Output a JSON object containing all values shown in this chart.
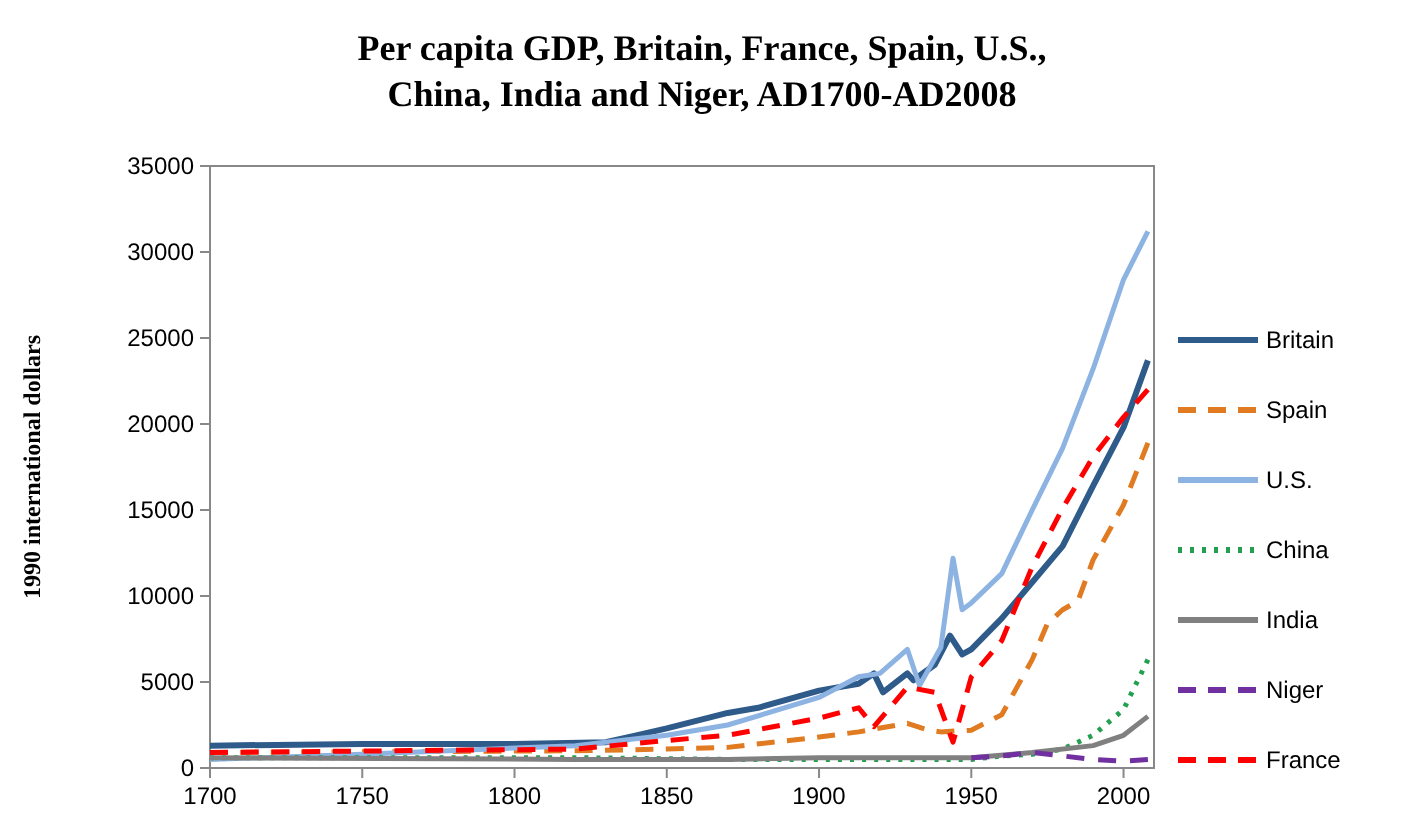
{
  "chart_data": {
    "type": "line",
    "title": "Per capita GDP, Britain, France, Spain, U.S., China, India and Niger, AD1700-AD2008",
    "ylabel": "1990 international dollars",
    "xlim": [
      1700,
      2010
    ],
    "xticks": [
      1700,
      1750,
      1800,
      1850,
      1900,
      1950,
      2000
    ],
    "ylim": [
      0,
      35000
    ],
    "yticks": [
      0,
      5000,
      10000,
      15000,
      20000,
      25000,
      30000,
      35000
    ],
    "grid": false,
    "legend": "right",
    "series": [
      {
        "name": "Britain",
        "color": "#2e5b8a",
        "line_style": "solid",
        "x": [
          1700,
          1750,
          1800,
          1830,
          1840,
          1850,
          1870,
          1880,
          1900,
          1913,
          1918,
          1921,
          1929,
          1931,
          1938,
          1943,
          1947,
          1950,
          1960,
          1970,
          1980,
          1990,
          2000,
          2008
        ],
        "values": [
          1300,
          1400,
          1400,
          1500,
          1900,
          2300,
          3200,
          3500,
          4500,
          4900,
          5500,
          4400,
          5500,
          5100,
          6000,
          7700,
          6600,
          6900,
          8700,
          10800,
          12900,
          16400,
          19800,
          23700
        ]
      },
      {
        "name": "Spain",
        "color": "#e07b22",
        "line_style": "dashed",
        "x": [
          1700,
          1820,
          1850,
          1870,
          1900,
          1913,
          1929,
          1936,
          1940,
          1950,
          1960,
          1970,
          1975,
          1980,
          1985,
          1990,
          2000,
          2008
        ],
        "values": [
          900,
          1000,
          1100,
          1200,
          1800,
          2100,
          2600,
          2200,
          2100,
          2200,
          3100,
          6300,
          8400,
          9200,
          9700,
          12100,
          15300,
          18900
        ]
      },
      {
        "name": "U.S.",
        "color": "#8db3e2",
        "line_style": "solid",
        "x": [
          1700,
          1750,
          1820,
          1850,
          1870,
          1900,
          1913,
          1920,
          1929,
          1933,
          1940,
          1944,
          1947,
          1950,
          1960,
          1970,
          1980,
          1990,
          2000,
          2008
        ],
        "values": [
          500,
          800,
          1300,
          1900,
          2500,
          4100,
          5300,
          5500,
          6900,
          4800,
          7000,
          12200,
          9200,
          9600,
          11300,
          15000,
          18600,
          23200,
          28400,
          31200
        ]
      },
      {
        "name": "China",
        "color": "#22a050",
        "line_style": "dotted",
        "x": [
          1700,
          1820,
          1870,
          1900,
          1950,
          1960,
          1970,
          1980,
          1990,
          2000,
          2008
        ],
        "values": [
          600,
          600,
          500,
          500,
          500,
          700,
          800,
          1100,
          1900,
          3400,
          6300
        ]
      },
      {
        "name": "India",
        "color": "#808080",
        "line_style": "solid",
        "x": [
          1700,
          1820,
          1870,
          1900,
          1950,
          1970,
          1990,
          2000,
          2008
        ],
        "values": [
          600,
          500,
          500,
          600,
          600,
          900,
          1300,
          1900,
          3000
        ]
      },
      {
        "name": "Niger",
        "color": "#7030a0",
        "line_style": "dashed",
        "x": [
          1950,
          1960,
          1970,
          1980,
          1990,
          2000,
          2008
        ],
        "values": [
          600,
          700,
          900,
          700,
          500,
          400,
          500
        ]
      },
      {
        "name": "France",
        "color": "#ff0000",
        "line_style": "dashed",
        "x": [
          1700,
          1820,
          1850,
          1870,
          1900,
          1913,
          1918,
          1929,
          1938,
          1944,
          1950,
          1960,
          1970,
          1980,
          1990,
          2000,
          2008
        ],
        "values": [
          900,
          1100,
          1600,
          1900,
          2900,
          3500,
          2400,
          4700,
          4400,
          1500,
          5300,
          7400,
          11700,
          15100,
          18100,
          20400,
          22000
        ]
      }
    ]
  }
}
